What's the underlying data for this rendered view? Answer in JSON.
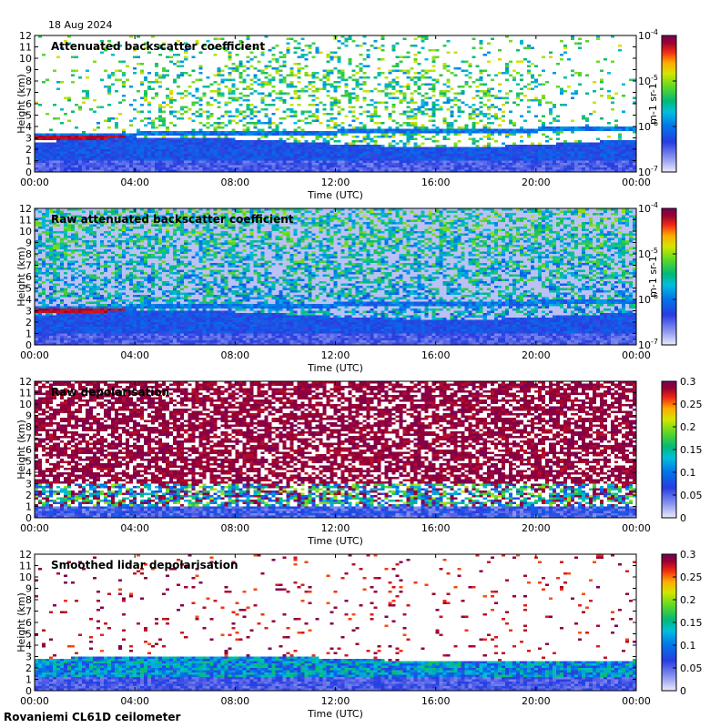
{
  "header": {
    "date": "18 Aug 2024"
  },
  "footer": {
    "station": "Rovaniemi CL61D ceilometer"
  },
  "chart_data": [
    {
      "type": "heatmap",
      "title": "Attenuated backscatter coefficient",
      "xlabel": "Time (UTC)",
      "ylabel": "Height (km)",
      "xticks": [
        "00:00",
        "04:00",
        "08:00",
        "12:00",
        "16:00",
        "20:00",
        "00:00"
      ],
      "yticks": [
        "0",
        "1",
        "2",
        "3",
        "4",
        "5",
        "6",
        "7",
        "8",
        "9",
        "10",
        "11",
        "12"
      ],
      "ylim": [
        0,
        12
      ],
      "colorbar": {
        "scale": "log",
        "ticks": [
          [
            "10",
            "-7"
          ],
          [
            "10",
            "-6"
          ],
          [
            "10",
            "-5"
          ],
          [
            "10",
            "-4"
          ]
        ],
        "unit": "m-1 sr-1",
        "range": [
          1e-07,
          0.0001
        ]
      }
    },
    {
      "type": "heatmap",
      "title": "Raw attenuated backscatter coefficient",
      "xlabel": "Time (UTC)",
      "ylabel": "Height (km)",
      "xticks": [
        "00:00",
        "04:00",
        "08:00",
        "12:00",
        "16:00",
        "20:00",
        "00:00"
      ],
      "yticks": [
        "0",
        "1",
        "2",
        "3",
        "4",
        "5",
        "6",
        "7",
        "8",
        "9",
        "10",
        "11",
        "12"
      ],
      "ylim": [
        0,
        12
      ],
      "colorbar": {
        "scale": "log",
        "ticks": [
          [
            "10",
            "-7"
          ],
          [
            "10",
            "-6"
          ],
          [
            "10",
            "-5"
          ],
          [
            "10",
            "-4"
          ]
        ],
        "unit": "m-1 sr-1",
        "range": [
          1e-07,
          0.0001
        ]
      }
    },
    {
      "type": "heatmap",
      "title": "Raw depolarisation",
      "xlabel": "Time (UTC)",
      "ylabel": "Height (km)",
      "xticks": [
        "00:00",
        "04:00",
        "08:00",
        "12:00",
        "16:00",
        "20:00",
        "00:00"
      ],
      "yticks": [
        "0",
        "1",
        "2",
        "3",
        "4",
        "5",
        "6",
        "7",
        "8",
        "9",
        "10",
        "11",
        "12"
      ],
      "ylim": [
        0,
        12
      ],
      "colorbar": {
        "scale": "linear",
        "ticks": [
          "0",
          "0.05",
          "0.1",
          "0.15",
          "0.2",
          "0.25",
          "0.3"
        ],
        "range": [
          0,
          0.3
        ]
      }
    },
    {
      "type": "heatmap",
      "title": "Smoothed lidar depolarisation",
      "xlabel": "Time (UTC)",
      "ylabel": "Height (km)",
      "xticks": [
        "00:00",
        "04:00",
        "08:00",
        "12:00",
        "16:00",
        "20:00",
        "00:00"
      ],
      "yticks": [
        "0",
        "1",
        "2",
        "3",
        "4",
        "5",
        "6",
        "7",
        "8",
        "9",
        "10",
        "11",
        "12"
      ],
      "ylim": [
        0,
        12
      ],
      "colorbar": {
        "scale": "linear",
        "ticks": [
          "0",
          "0.05",
          "0.1",
          "0.15",
          "0.2",
          "0.25",
          "0.3"
        ],
        "range": [
          0,
          0.3
        ]
      }
    }
  ]
}
